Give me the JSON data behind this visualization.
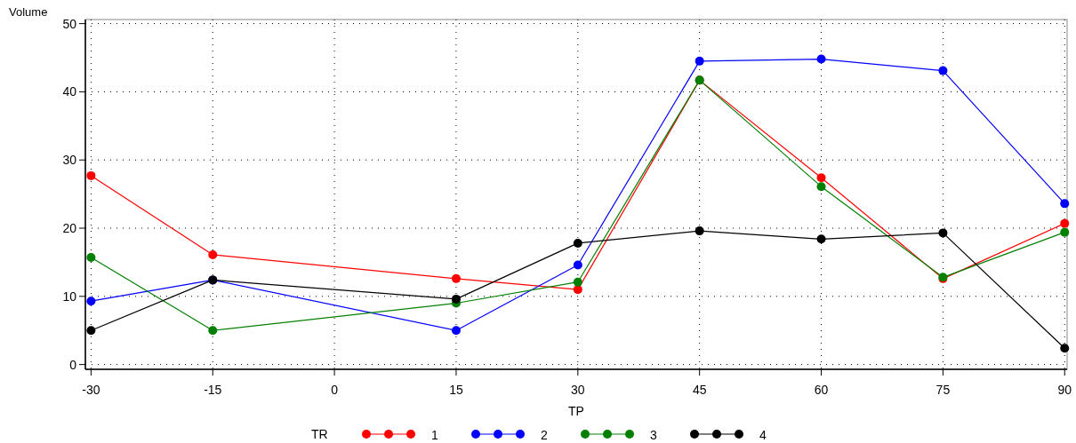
{
  "chart_data": {
    "type": "line",
    "xlabel": "TP",
    "ylabel": "Volume",
    "legend_title": "TR",
    "x": [
      -30,
      -15,
      15,
      30,
      45,
      60,
      75,
      90
    ],
    "xlim": [
      -30.7,
      90.3
    ],
    "xticks": [
      -30,
      -15,
      0,
      15,
      30,
      45,
      60,
      75,
      90
    ],
    "ylim": [
      -0.7,
      50.6
    ],
    "yticks": [
      0,
      10,
      20,
      30,
      40,
      50
    ],
    "grid": true,
    "legend": "bottom",
    "marker": "circle",
    "line_style": "solid",
    "series": [
      {
        "name": "1",
        "color": "#ff0000",
        "values": [
          27.7,
          16.1,
          12.6,
          11.0,
          41.7,
          27.4,
          12.6,
          20.7
        ]
      },
      {
        "name": "2",
        "color": "#0000ff",
        "values": [
          9.3,
          12.4,
          5.0,
          14.6,
          44.5,
          44.8,
          43.1,
          23.6
        ]
      },
      {
        "name": "3",
        "color": "#008000",
        "values": [
          15.7,
          5.0,
          9.0,
          12.1,
          41.7,
          26.1,
          12.8,
          19.4
        ]
      },
      {
        "name": "4",
        "color": "#000000",
        "values": [
          5.0,
          12.4,
          9.6,
          17.8,
          19.6,
          18.4,
          19.3,
          2.4
        ]
      }
    ]
  }
}
